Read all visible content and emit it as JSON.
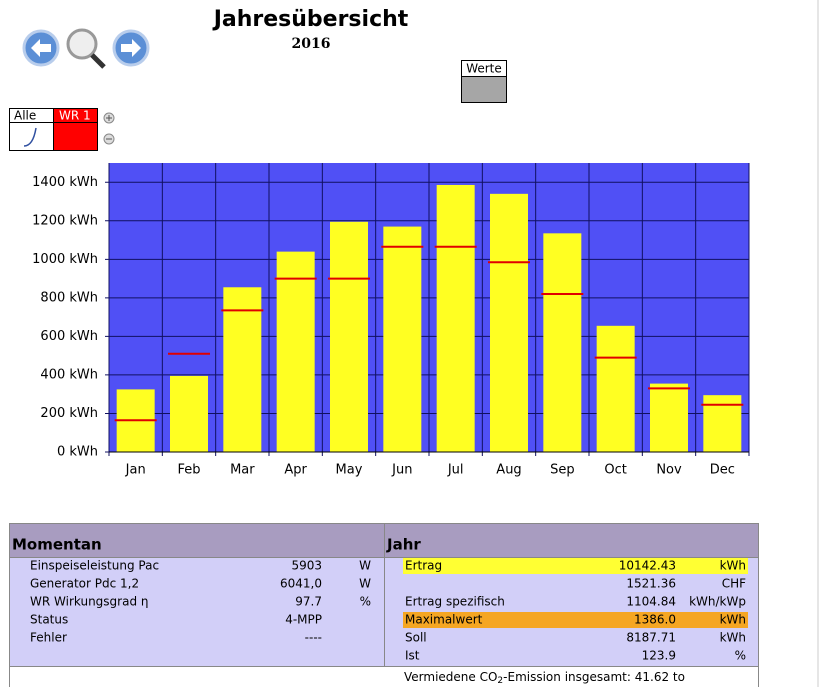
{
  "header": {
    "title": "Jahresübersicht",
    "subtitle": "2016",
    "legend_button": "Werte",
    "tabs": [
      "Alle",
      "WR 1"
    ]
  },
  "chart_data": {
    "type": "bar",
    "categories": [
      "Jan",
      "Feb",
      "Mar",
      "Apr",
      "May",
      "Jun",
      "Jul",
      "Aug",
      "Sep",
      "Oct",
      "Nov",
      "Dec"
    ],
    "series": [
      {
        "color": "#ffff22",
        "values": [
          325,
          395,
          855,
          1040,
          1195,
          1170,
          1386,
          1340,
          1135,
          655,
          355,
          295
        ]
      },
      {
        "color": "#e00000",
        "values": [
          165,
          510,
          735,
          900,
          900,
          1065,
          1065,
          985,
          820,
          490,
          330,
          245
        ]
      }
    ],
    "ylim": [
      0,
      1500
    ],
    "yticks": [
      {
        "value": 0,
        "label": "0 kWh"
      },
      {
        "value": 200,
        "label": "200 kWh"
      },
      {
        "value": 400,
        "label": "400 kWh"
      },
      {
        "value": 600,
        "label": "600 kWh"
      },
      {
        "value": 800,
        "label": "800 kWh"
      },
      {
        "value": 1000,
        "label": "1000 kWh"
      },
      {
        "value": 1200,
        "label": "1200 kWh"
      },
      {
        "value": 1400,
        "label": "1400 kWh"
      }
    ],
    "grid": true,
    "background": "#5050f5"
  },
  "momentan": {
    "title": "Momentan",
    "rows": [
      {
        "label": "Einspeiseleistung Pac",
        "value": "5903",
        "unit": "W"
      },
      {
        "label": "Generator Pdc 1,2",
        "value": "6041,0",
        "unit": "W"
      },
      {
        "label": "WR Wirkungsgrad η",
        "value": "97.7",
        "unit": "%"
      },
      {
        "label": "Status",
        "value": "4-MPP"
      },
      {
        "label": "Fehler",
        "value": "----"
      }
    ]
  },
  "jahr": {
    "title": "Jahr",
    "rows": [
      {
        "label": "Ertrag",
        "value": "10142.43",
        "unit": "kWh",
        "highlight": "#ffff33"
      },
      {
        "value": "1521.36",
        "unit": "CHF"
      },
      {
        "label": "Ertrag spezifisch",
        "value": "1104.84",
        "unit": "kWh/kWp"
      },
      {
        "label": "Maximalwert",
        "value": "1386.0",
        "unit": "kWh",
        "highlight": "#f5a623"
      },
      {
        "label": "Soll",
        "value": "8187.71",
        "unit": "kWh"
      },
      {
        "label": "Ist",
        "value": "123.9",
        "unit": "%"
      }
    ],
    "co2": [
      "Vermiedene CO",
      "2",
      "-Emission insgesamt: 41.62 to"
    ]
  }
}
